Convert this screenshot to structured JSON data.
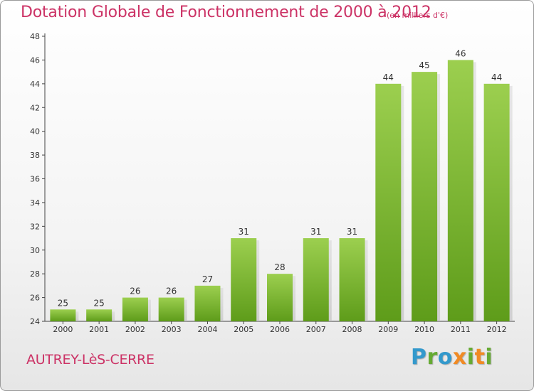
{
  "chart_data": {
    "type": "bar",
    "title": "Dotation Globale de Fonctionnement de 2000 à 2012",
    "subtitle": "(en milliers d'€)",
    "categories": [
      "2000",
      "2001",
      "2002",
      "2003",
      "2004",
      "2005",
      "2006",
      "2007",
      "2008",
      "2009",
      "2010",
      "2011",
      "2012"
    ],
    "values": [
      25,
      25,
      26,
      26,
      27,
      31,
      28,
      31,
      31,
      44,
      45,
      46,
      44
    ],
    "ylim": [
      24,
      48
    ],
    "yticks": [
      24,
      26,
      28,
      30,
      32,
      34,
      36,
      38,
      40,
      42,
      44,
      46,
      48
    ],
    "grid": false,
    "bar_color": "#7ab534",
    "label_color": "#cc3366"
  },
  "footer": {
    "commune": "AUTREY-LèS-CERRE",
    "brand_letters": [
      {
        "ch": "P",
        "color": "#3399cc"
      },
      {
        "ch": "r",
        "color": "#66aa33"
      },
      {
        "ch": "o",
        "color": "#3399cc"
      },
      {
        "ch": "x",
        "color": "#f08a24"
      },
      {
        "ch": "i",
        "color": "#66aa33"
      },
      {
        "ch": "t",
        "color": "#f08a24"
      },
      {
        "ch": "i",
        "color": "#66aa33"
      }
    ]
  }
}
